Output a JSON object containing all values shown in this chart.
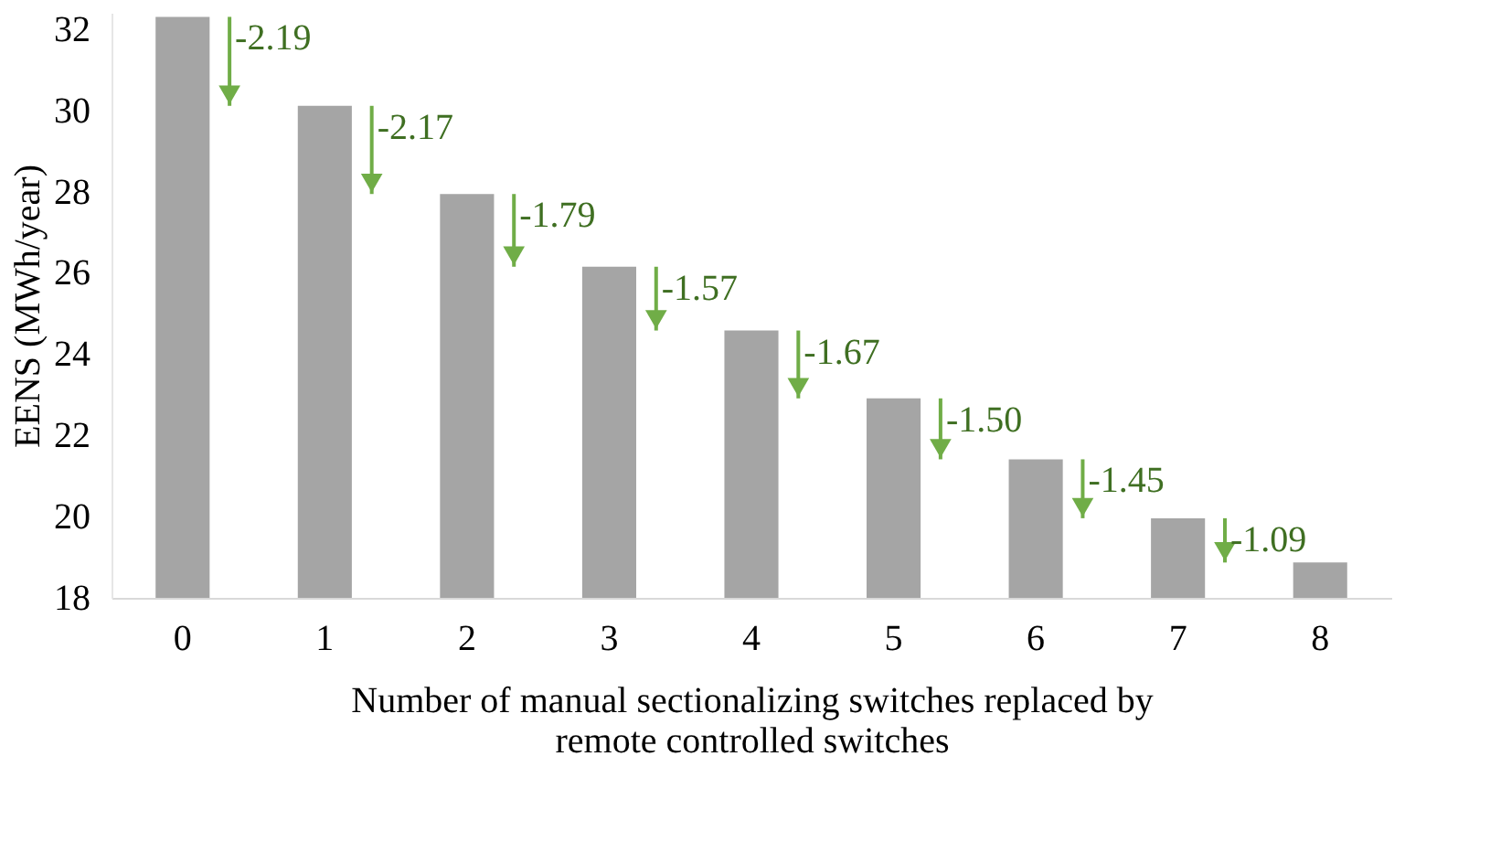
{
  "chart_data": {
    "type": "bar",
    "xlabel": "Number of manual sectionalizing switches replaced by remote controlled switches",
    "ylabel": "EENS (MWh/year)",
    "categories": [
      "0",
      "1",
      "2",
      "3",
      "4",
      "5",
      "6",
      "7",
      "8"
    ],
    "values": [
      32.3,
      30.11,
      27.94,
      26.15,
      24.58,
      22.91,
      21.41,
      19.96,
      18.87
    ],
    "color": "#a5a5a5",
    "ylim": [
      18,
      32.4
    ],
    "yticks": [
      18,
      20,
      22,
      24,
      26,
      28,
      30,
      32
    ],
    "grid": false,
    "annotations": [
      {
        "text": "-2.19"
      },
      {
        "text": "-2.17"
      },
      {
        "text": "-1.79"
      },
      {
        "text": "-1.57"
      },
      {
        "text": "-1.67"
      },
      {
        "text": "-1.50"
      },
      {
        "text": "-1.45"
      },
      {
        "text": "-1.09"
      }
    ]
  }
}
